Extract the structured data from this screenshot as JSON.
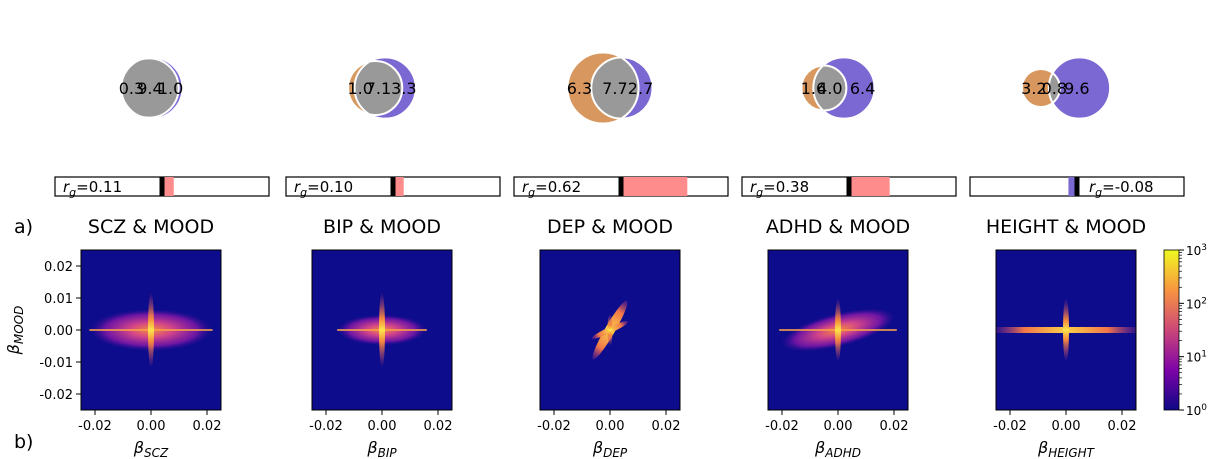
{
  "panel_labels": [
    "a)",
    "b)"
  ],
  "colors": {
    "first_trait": "#d8975e",
    "second_trait": "#7b68d3",
    "shared": "#999999",
    "rg_positive": "#ff8c8c",
    "rg_negative": "#7b68d3",
    "heatmap_bg": "#0c0c8c"
  },
  "colorbar": {
    "ticks": [
      "10^0",
      "10^1",
      "10^2",
      "10^3"
    ],
    "scale": "log"
  },
  "chart_data": [
    {
      "type": "venn",
      "title": "SCZ & MOOD",
      "regions": {
        "left": "0.3",
        "shared": "9.4",
        "right": "1.0"
      },
      "rg": {
        "label": "r_g=0.11",
        "value": 0.11
      },
      "heatmap": {
        "type": "heatmap",
        "xlabel": "β_SCZ",
        "ylabel": "β_MOOD",
        "xlim": [
          -0.025,
          0.025
        ],
        "ylim": [
          -0.025,
          0.025
        ],
        "xticks": [
          "-0.02",
          "0.00",
          "0.02"
        ],
        "yticks": [
          "0.02",
          "0.01",
          "0.00",
          "-0.01",
          "-0.02"
        ],
        "spread_x": 0.022,
        "spread_y": 0.0075
      }
    },
    {
      "type": "venn",
      "title": "BIP & MOOD",
      "regions": {
        "left": "1.0",
        "shared": "7.1",
        "right": "3.3"
      },
      "rg": {
        "label": "r_g=0.10",
        "value": 0.1
      },
      "heatmap": {
        "type": "heatmap",
        "xlabel": "β_BIP",
        "xlim": [
          -0.025,
          0.025
        ],
        "ylim": [
          -0.025,
          0.025
        ],
        "xticks": [
          "-0.02",
          "0.00",
          "0.02"
        ],
        "spread_x": 0.016,
        "spread_y": 0.0055
      }
    },
    {
      "type": "venn",
      "title": "DEP & MOOD",
      "regions": {
        "left": "6.3",
        "shared": "7.7",
        "right": "2.7"
      },
      "rg": {
        "label": "r_g=0.62",
        "value": 0.62
      },
      "heatmap": {
        "type": "heatmap",
        "xlabel": "β_DEP",
        "xlim": [
          -0.025,
          0.025
        ],
        "ylim": [
          -0.025,
          0.025
        ],
        "xticks": [
          "-0.02",
          "0.00",
          "0.02"
        ],
        "spread_x": 0.007,
        "spread_y": 0.011
      }
    },
    {
      "type": "venn",
      "title": "ADHD & MOOD",
      "regions": {
        "left": "1.6",
        "shared": "4.0",
        "right": "6.4"
      },
      "rg": {
        "label": "r_g=0.38",
        "value": 0.38
      },
      "heatmap": {
        "type": "heatmap",
        "xlabel": "β_ADHD",
        "xlim": [
          -0.025,
          0.025
        ],
        "ylim": [
          -0.025,
          0.025
        ],
        "xticks": [
          "-0.02",
          "0.00",
          "0.02"
        ],
        "spread_x": 0.021,
        "spread_y": 0.006
      }
    },
    {
      "type": "venn",
      "title": "HEIGHT & MOOD",
      "regions": {
        "left": "3.2",
        "shared": "0.8",
        "right": "9.6"
      },
      "rg": {
        "label": "r_g=-0.08",
        "value": -0.08
      },
      "heatmap": {
        "type": "heatmap",
        "xlabel": "β_HEIGHT",
        "xlim": [
          -0.025,
          0.025
        ],
        "ylim": [
          -0.025,
          0.025
        ],
        "xticks": [
          "-0.02",
          "0.00",
          "0.02"
        ],
        "spread_x": 0.02,
        "spread_y": 0.001
      }
    }
  ]
}
